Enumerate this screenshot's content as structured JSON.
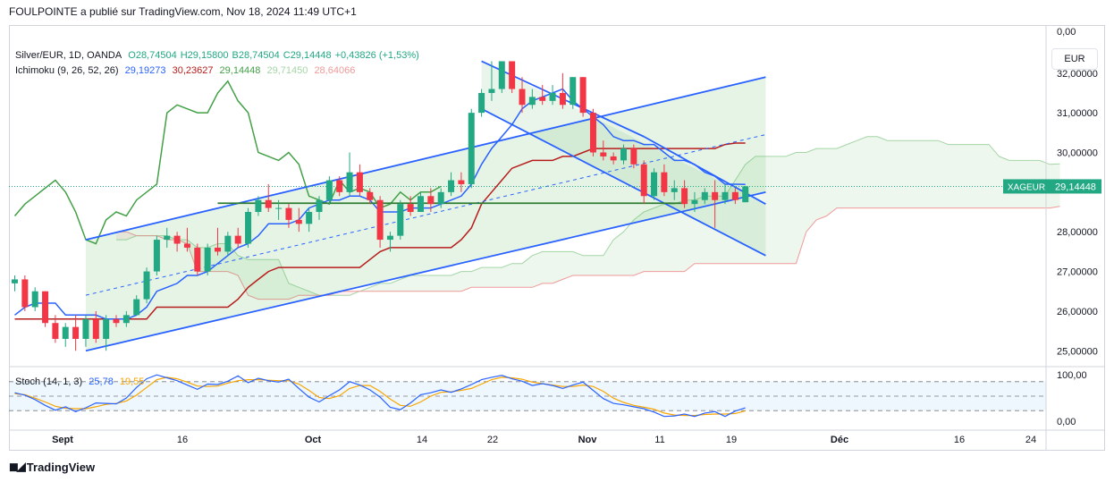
{
  "header": {
    "published": "FOULPOINTE a publié sur TradingView.com, Nov 18, 2024 11:49 UTC+1"
  },
  "legend": {
    "symbol": "Silver/EUR, 1D, OANDA",
    "o": "O28,74504",
    "h": "H29,15800",
    "l": "B28,74504",
    "c": "C29,14448",
    "change": "+0,43826 (+1,53%)",
    "ichimoku_label": "Ichimoku (9, 26, 52, 26)",
    "ichimoku_values": [
      "29,19273",
      "30,23627",
      "29,14448",
      "29,71450",
      "28,64066"
    ],
    "stoch_label": "Stoch (14, 1, 3)",
    "stoch_values": [
      "25,78",
      "19,55"
    ]
  },
  "currency_button": "EUR",
  "price_axis": {
    "top_label": "0,00",
    "labels": [
      "32,00000",
      "31,00000",
      "30,00000",
      "28,00000",
      "27,00000",
      "26,00000",
      "25,00000"
    ],
    "values": [
      32,
      31,
      30,
      28,
      27,
      26,
      25
    ],
    "current_tag": "XAGEUR",
    "current_value": "29,14448",
    "current": 29.14448
  },
  "stoch_axis": {
    "labels": [
      "100,00",
      "0,00"
    ]
  },
  "time_axis": {
    "labels": [
      "Sept",
      "16",
      "Oct",
      "14",
      "22",
      "Nov",
      "11",
      "19",
      "Déc",
      "16",
      "24"
    ]
  },
  "colors": {
    "up": "#22a883",
    "down": "#f23645",
    "tenkan": "#2962ff",
    "kijun": "#b71c1c",
    "chikou": "#43a047",
    "span_a": "#a5d6a7",
    "span_b": "#ef9a9a",
    "channel": "#2962ff",
    "stoch_k": "#2962ff",
    "stoch_d": "#f7a600"
  },
  "chart_data": {
    "type": "candlestick",
    "title": "Silver/EUR, 1D, OANDA",
    "ylim": [
      24.6,
      33.1
    ],
    "candles": [
      [
        26.7,
        26.9,
        26.5,
        26.8
      ],
      [
        26.8,
        26.9,
        26.0,
        26.1
      ],
      [
        26.1,
        26.6,
        26.0,
        26.5
      ],
      [
        26.5,
        26.5,
        25.6,
        25.7
      ],
      [
        25.7,
        25.9,
        25.2,
        25.3
      ],
      [
        25.3,
        25.7,
        25.1,
        25.6
      ],
      [
        25.6,
        25.9,
        25.0,
        25.3
      ],
      [
        25.3,
        25.9,
        25.1,
        25.8
      ],
      [
        25.8,
        26.0,
        25.2,
        25.3
      ],
      [
        25.3,
        25.9,
        25.0,
        25.8
      ],
      [
        25.8,
        25.9,
        25.6,
        25.7
      ],
      [
        25.7,
        26.0,
        25.6,
        25.9
      ],
      [
        25.9,
        26.4,
        25.9,
        26.3
      ],
      [
        26.3,
        27.1,
        26.2,
        27.0
      ],
      [
        27.0,
        27.9,
        26.9,
        27.8
      ],
      [
        27.8,
        28.1,
        27.6,
        27.9
      ],
      [
        27.9,
        28.0,
        27.5,
        27.7
      ],
      [
        27.7,
        28.1,
        27.5,
        27.6
      ],
      [
        27.6,
        27.7,
        26.9,
        27.0
      ],
      [
        27.0,
        27.7,
        26.9,
        27.6
      ],
      [
        27.6,
        28.1,
        27.4,
        27.5
      ],
      [
        27.5,
        28.0,
        27.4,
        27.9
      ],
      [
        27.9,
        28.1,
        27.6,
        27.7
      ],
      [
        27.7,
        28.6,
        27.6,
        28.5
      ],
      [
        28.5,
        28.9,
        28.4,
        28.8
      ],
      [
        28.8,
        29.2,
        28.5,
        28.6
      ],
      [
        28.6,
        28.8,
        28.3,
        28.6
      ],
      [
        28.6,
        28.7,
        28.1,
        28.3
      ],
      [
        28.3,
        28.6,
        28.0,
        28.2
      ],
      [
        28.2,
        28.6,
        28.0,
        28.5
      ],
      [
        28.5,
        28.9,
        28.3,
        28.8
      ],
      [
        28.8,
        29.4,
        28.7,
        29.3
      ],
      [
        29.3,
        29.4,
        28.9,
        29.0
      ],
      [
        29.0,
        30.0,
        28.9,
        29.5
      ],
      [
        29.5,
        29.7,
        28.9,
        29.0
      ],
      [
        29.0,
        29.1,
        28.7,
        28.8
      ],
      [
        28.8,
        28.9,
        27.6,
        27.8
      ],
      [
        27.8,
        28.0,
        27.5,
        27.9
      ],
      [
        27.9,
        28.8,
        27.8,
        28.7
      ],
      [
        28.7,
        28.9,
        28.4,
        28.5
      ],
      [
        28.5,
        29.0,
        28.5,
        28.9
      ],
      [
        28.9,
        29.1,
        28.5,
        28.7
      ],
      [
        28.7,
        29.1,
        28.6,
        29.0
      ],
      [
        29.0,
        29.5,
        28.9,
        29.3
      ],
      [
        29.3,
        29.5,
        29.0,
        29.2
      ],
      [
        29.2,
        31.1,
        29.1,
        31.0
      ],
      [
        31.0,
        31.6,
        30.9,
        31.5
      ],
      [
        31.5,
        32.3,
        31.3,
        31.6
      ],
      [
        31.6,
        32.3,
        31.5,
        32.3
      ],
      [
        32.3,
        32.3,
        31.5,
        31.6
      ],
      [
        31.6,
        31.9,
        31.0,
        31.2
      ],
      [
        31.2,
        31.6,
        31.1,
        31.4
      ],
      [
        31.4,
        31.7,
        31.2,
        31.3
      ],
      [
        31.3,
        31.7,
        31.2,
        31.5
      ],
      [
        31.5,
        32.0,
        31.1,
        31.2
      ],
      [
        31.2,
        31.9,
        31.1,
        31.9
      ],
      [
        31.9,
        31.9,
        30.9,
        31.0
      ],
      [
        31.0,
        31.1,
        29.9,
        30.0
      ],
      [
        30.0,
        30.3,
        29.8,
        29.9
      ],
      [
        29.9,
        30.0,
        29.7,
        29.8
      ],
      [
        29.8,
        30.2,
        29.7,
        30.1
      ],
      [
        30.1,
        30.2,
        29.6,
        29.7
      ],
      [
        29.7,
        29.8,
        28.7,
        28.9
      ],
      [
        28.9,
        29.6,
        28.8,
        29.5
      ],
      [
        29.5,
        29.7,
        28.9,
        29.0
      ],
      [
        29.0,
        29.3,
        28.8,
        29.1
      ],
      [
        29.1,
        29.3,
        28.6,
        28.7
      ],
      [
        28.7,
        29.0,
        28.5,
        28.8
      ],
      [
        28.8,
        29.1,
        28.7,
        29.0
      ],
      [
        29.0,
        29.3,
        28.1,
        28.8
      ],
      [
        28.8,
        29.2,
        28.7,
        29.0
      ],
      [
        29.0,
        29.1,
        28.7,
        28.8
      ],
      [
        28.74504,
        29.158,
        28.74504,
        29.14448
      ]
    ],
    "tenkan": [
      25.9,
      26.1,
      26.2,
      26.2,
      26.2,
      25.9,
      25.9,
      25.9,
      25.9,
      25.8,
      25.8,
      25.8,
      25.9,
      26.1,
      26.5,
      26.6,
      26.7,
      26.9,
      26.9,
      27.0,
      27.2,
      27.4,
      27.6,
      27.7,
      27.9,
      28.2,
      28.2,
      28.2,
      28.3,
      28.6,
      28.7,
      28.8,
      28.8,
      28.9,
      28.9,
      28.8,
      28.5,
      28.5,
      28.5,
      28.6,
      28.6,
      28.6,
      28.7,
      28.8,
      28.9,
      29.2,
      29.7,
      30.1,
      30.4,
      30.7,
      31.1,
      31.3,
      31.4,
      31.5,
      31.6,
      31.3,
      31.1,
      30.9,
      30.7,
      30.4,
      30.3,
      30.3,
      30.2,
      30.2,
      30.0,
      29.8,
      29.8,
      29.7,
      29.5,
      29.4,
      29.2,
      29.2,
      29.19273
    ],
    "kijun": [
      25.8,
      25.8,
      25.8,
      25.8,
      25.8,
      25.8,
      25.8,
      25.8,
      25.8,
      25.8,
      25.8,
      25.8,
      25.8,
      25.8,
      26.1,
      26.1,
      26.1,
      26.1,
      26.1,
      26.1,
      26.1,
      26.1,
      26.3,
      26.6,
      26.8,
      27.0,
      27.1,
      27.1,
      27.1,
      27.1,
      27.1,
      27.1,
      27.1,
      27.1,
      27.1,
      27.3,
      27.5,
      27.6,
      27.6,
      27.6,
      27.6,
      27.6,
      27.6,
      27.6,
      27.8,
      28.1,
      28.7,
      29.0,
      29.3,
      29.6,
      29.7,
      29.8,
      29.8,
      29.8,
      29.9,
      29.9,
      30.0,
      30.1,
      30.1,
      30.1,
      30.1,
      30.1,
      30.1,
      30.1,
      30.1,
      30.1,
      30.1,
      30.1,
      30.1,
      30.1,
      30.2,
      30.23627,
      30.23627
    ],
    "chikou": [
      28.4,
      28.7,
      28.9,
      29.1,
      29.3,
      29.0,
      28.5,
      27.8,
      27.7,
      28.3,
      28.5,
      28.4,
      28.8,
      29.0,
      29.2,
      31.0,
      31.2,
      31.1,
      31.0,
      31.0,
      31.5,
      31.8,
      31.3,
      31.0,
      30.0,
      29.9,
      29.8,
      30.0,
      29.7,
      28.9,
      28.8,
      28.7,
      29.3,
      29.0,
      29.1,
      29.0,
      28.6,
      28.7,
      29.0,
      28.8,
      29.0,
      29.0,
      29.14448
    ],
    "span_a": [
      27.8,
      27.8,
      27.9,
      27.9,
      27.9,
      27.9,
      27.8,
      27.8,
      27.6,
      27.6,
      27.7,
      27.7,
      27.4,
      27.3,
      27.3,
      27.3,
      27.3,
      26.7,
      26.6,
      26.5,
      26.4,
      26.4,
      26.4,
      26.4,
      26.5,
      26.6,
      26.7,
      26.7,
      26.8,
      26.9,
      26.9,
      26.9,
      26.9,
      26.9,
      27.0,
      27.0,
      27.1,
      27.1,
      27.1,
      27.2,
      27.2,
      27.4,
      27.5,
      27.5,
      27.5,
      27.5,
      27.4,
      27.4,
      27.4,
      27.8,
      28.0,
      28.3,
      28.5,
      28.6,
      28.7,
      28.7,
      28.8,
      28.8,
      28.9,
      28.9,
      28.9,
      29.3,
      29.7,
      29.9,
      29.9,
      29.9,
      29.9,
      30.0,
      30.0,
      30.1,
      30.1,
      30.1,
      30.2,
      30.3,
      30.4,
      30.4,
      30.3,
      30.3,
      30.3,
      30.3,
      30.3,
      30.3,
      30.2,
      30.2,
      30.2,
      30.2,
      30.2,
      29.9,
      29.8,
      29.8,
      29.8,
      29.8,
      29.7,
      29.7145
    ],
    "span_b": [
      28.0,
      28.0,
      27.9,
      27.9,
      27.9,
      27.8,
      27.8,
      27.7,
      27.0,
      27.0,
      27.0,
      27.0,
      26.9,
      26.4,
      26.3,
      26.3,
      26.3,
      26.3,
      26.4,
      26.4,
      26.4,
      26.4,
      26.5,
      26.5,
      26.5,
      26.5,
      26.5,
      26.5,
      26.5,
      26.5,
      26.5,
      26.5,
      26.5,
      26.5,
      26.5,
      26.6,
      26.6,
      26.6,
      26.6,
      26.6,
      26.6,
      26.6,
      26.7,
      26.7,
      26.8,
      26.9,
      26.9,
      26.9,
      26.9,
      26.9,
      26.9,
      26.9,
      27.0,
      27.0,
      27.0,
      27.0,
      27.0,
      27.2,
      27.2,
      27.2,
      27.2,
      27.2,
      27.2,
      27.2,
      27.2,
      27.2,
      27.2,
      27.2,
      28.0,
      28.3,
      28.4,
      28.6,
      28.6,
      28.6,
      28.6,
      28.6,
      28.6,
      28.6,
      28.6,
      28.6,
      28.6,
      28.6,
      28.6,
      28.6,
      28.6,
      28.6,
      28.6,
      28.6,
      28.6,
      28.6,
      28.6,
      28.6,
      28.6,
      28.64066
    ],
    "cloud_start_index": 10,
    "stoch_k": [
      57,
      52,
      43,
      31,
      21,
      28,
      18,
      26,
      36,
      35,
      34,
      46,
      68,
      86,
      94,
      88,
      82,
      73,
      64,
      75,
      74,
      81,
      92,
      78,
      87,
      82,
      79,
      85,
      66,
      48,
      38,
      51,
      63,
      80,
      73,
      63,
      48,
      27,
      22,
      36,
      53,
      57,
      63,
      58,
      65,
      74,
      84,
      89,
      93,
      86,
      81,
      72,
      76,
      72,
      66,
      73,
      79,
      62,
      45,
      35,
      32,
      28,
      24,
      17,
      8,
      9,
      13,
      8,
      15,
      18,
      8,
      19,
      25.78
    ],
    "stoch_d": [
      55,
      53,
      46,
      38,
      29,
      25,
      24,
      24,
      28,
      33,
      35,
      40,
      52,
      68,
      84,
      89,
      86,
      79,
      71,
      70,
      71,
      77,
      82,
      84,
      84,
      83,
      82,
      82,
      75,
      62,
      47,
      45,
      51,
      66,
      72,
      72,
      60,
      44,
      31,
      29,
      38,
      50,
      58,
      59,
      62,
      66,
      75,
      84,
      89,
      88,
      85,
      79,
      76,
      73,
      70,
      70,
      73,
      70,
      60,
      46,
      37,
      31,
      27,
      23,
      15,
      11,
      10,
      10,
      12,
      13,
      13,
      14,
      19.55
    ],
    "channel_up": {
      "lower": [
        [
          7,
          25.0
        ],
        [
          74,
          29.0
        ]
      ],
      "upper": [
        [
          7,
          27.8
        ],
        [
          74,
          31.9
        ]
      ],
      "mid": [
        [
          7,
          26.4
        ],
        [
          74,
          30.45
        ]
      ]
    },
    "channel_down": {
      "upper": [
        [
          46,
          32.3
        ],
        [
          62,
          30.4
        ],
        [
          74,
          28.7
        ]
      ],
      "lower": [
        [
          46,
          31.1
        ],
        [
          74,
          27.4
        ]
      ]
    },
    "h_line": {
      "from": 20,
      "to": 66,
      "value": 28.72
    }
  }
}
